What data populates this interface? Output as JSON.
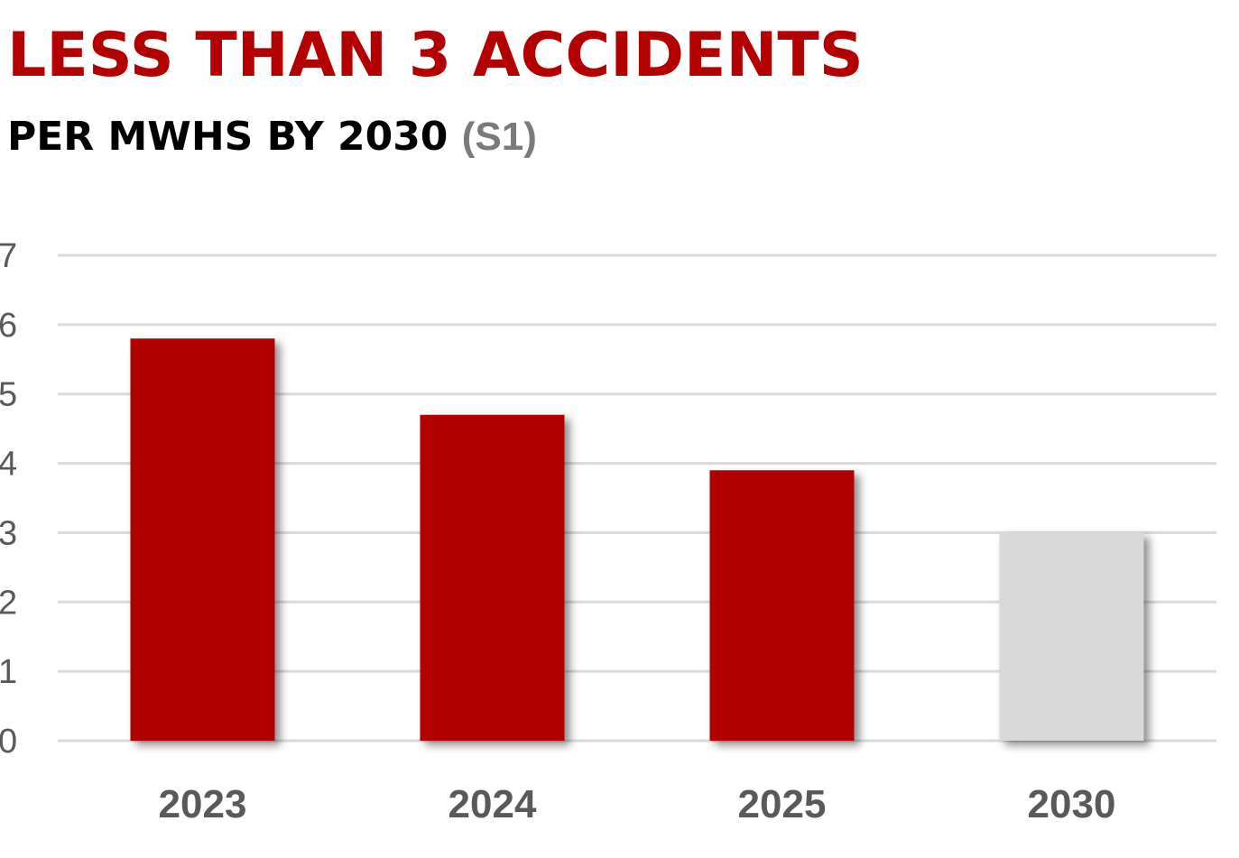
{
  "header": {
    "title": "LESS THAN 3 ACCIDENTS",
    "subtitle": "PER MWHS BY 2030",
    "subtitle_tag": "(S1)"
  },
  "colors": {
    "actual": "#b00000",
    "target": "#d9d9d9",
    "gridline": "#d9d9d9",
    "text": "#595959"
  },
  "chart_data": {
    "type": "bar",
    "title": "LESS THAN 3 ACCIDENTS",
    "subtitle": "PER MWHS BY 2030 (S1)",
    "xlabel": "",
    "ylabel": "",
    "ylim": [
      0,
      7
    ],
    "yticks": [
      0,
      1,
      2,
      3,
      4,
      5,
      6,
      7
    ],
    "grid": true,
    "categories": [
      "2023",
      "2024",
      "2025",
      "2030"
    ],
    "values": [
      5.8,
      4.7,
      3.9,
      3.0
    ],
    "bar_colors": [
      "#b00000",
      "#b00000",
      "#b00000",
      "#d9d9d9"
    ]
  }
}
